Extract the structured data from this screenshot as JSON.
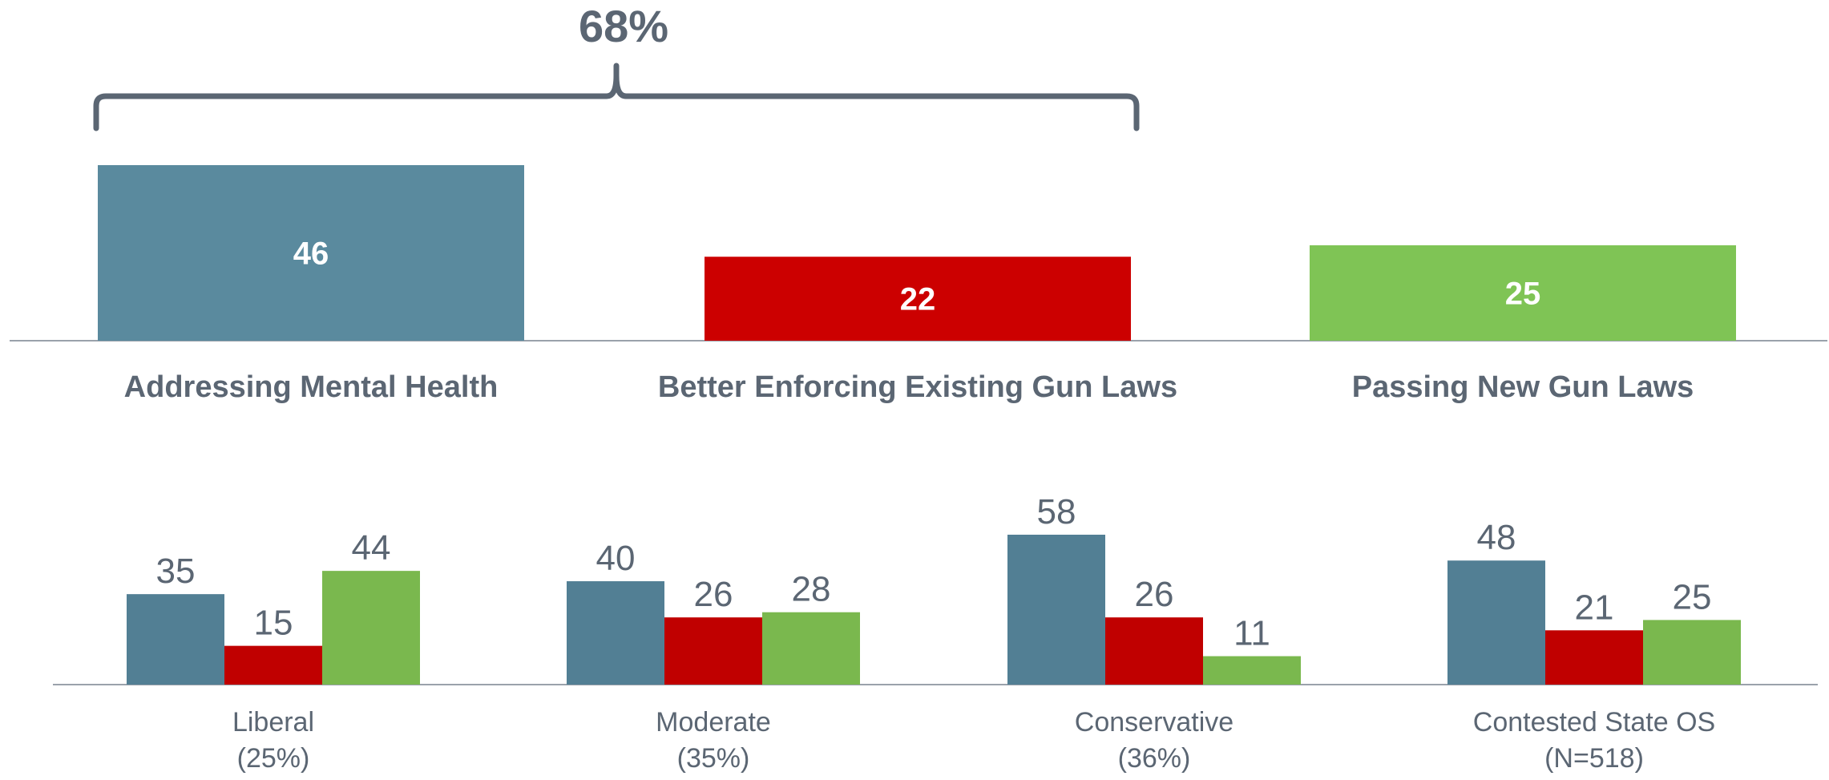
{
  "colors": {
    "text": "#5b6673",
    "axis": "#9aa2ab",
    "white": "#ffffff"
  },
  "chart_data": [
    {
      "type": "bar",
      "title": "",
      "xlabel": "",
      "ylabel": "",
      "categories": [
        "Addressing Mental Health",
        "Better Enforcing Existing Gun Laws",
        "Passing New Gun Laws"
      ],
      "values": [
        46,
        22,
        25
      ],
      "bar_colors": [
        "#5a8a9e",
        "#cc0000",
        "#7fc455"
      ],
      "data_label_position": "inside",
      "ylim": [
        0,
        46
      ],
      "grid": false,
      "annotation": {
        "text": "68%",
        "type": "bracket",
        "spans_categories": [
          "Addressing Mental Health",
          "Better Enforcing Existing Gun Laws"
        ]
      }
    },
    {
      "type": "bar",
      "title": "",
      "xlabel": "",
      "ylabel": "",
      "categories": [
        {
          "label": "Liberal",
          "sublabel": "(25%)"
        },
        {
          "label": "Moderate",
          "sublabel": "(35%)"
        },
        {
          "label": "Conservative",
          "sublabel": "(36%)"
        },
        {
          "label": "Contested State OS",
          "sublabel": "(N=518)"
        }
      ],
      "series": [
        {
          "values": [
            35,
            40,
            58,
            48
          ],
          "color": "#527f94"
        },
        {
          "values": [
            15,
            26,
            26,
            21
          ],
          "color": "#c00000"
        },
        {
          "values": [
            44,
            28,
            11,
            25
          ],
          "color": "#7ab84e"
        }
      ],
      "data_label_position": "above",
      "ylim": [
        0,
        58
      ],
      "grid": false,
      "legend": "none"
    }
  ]
}
